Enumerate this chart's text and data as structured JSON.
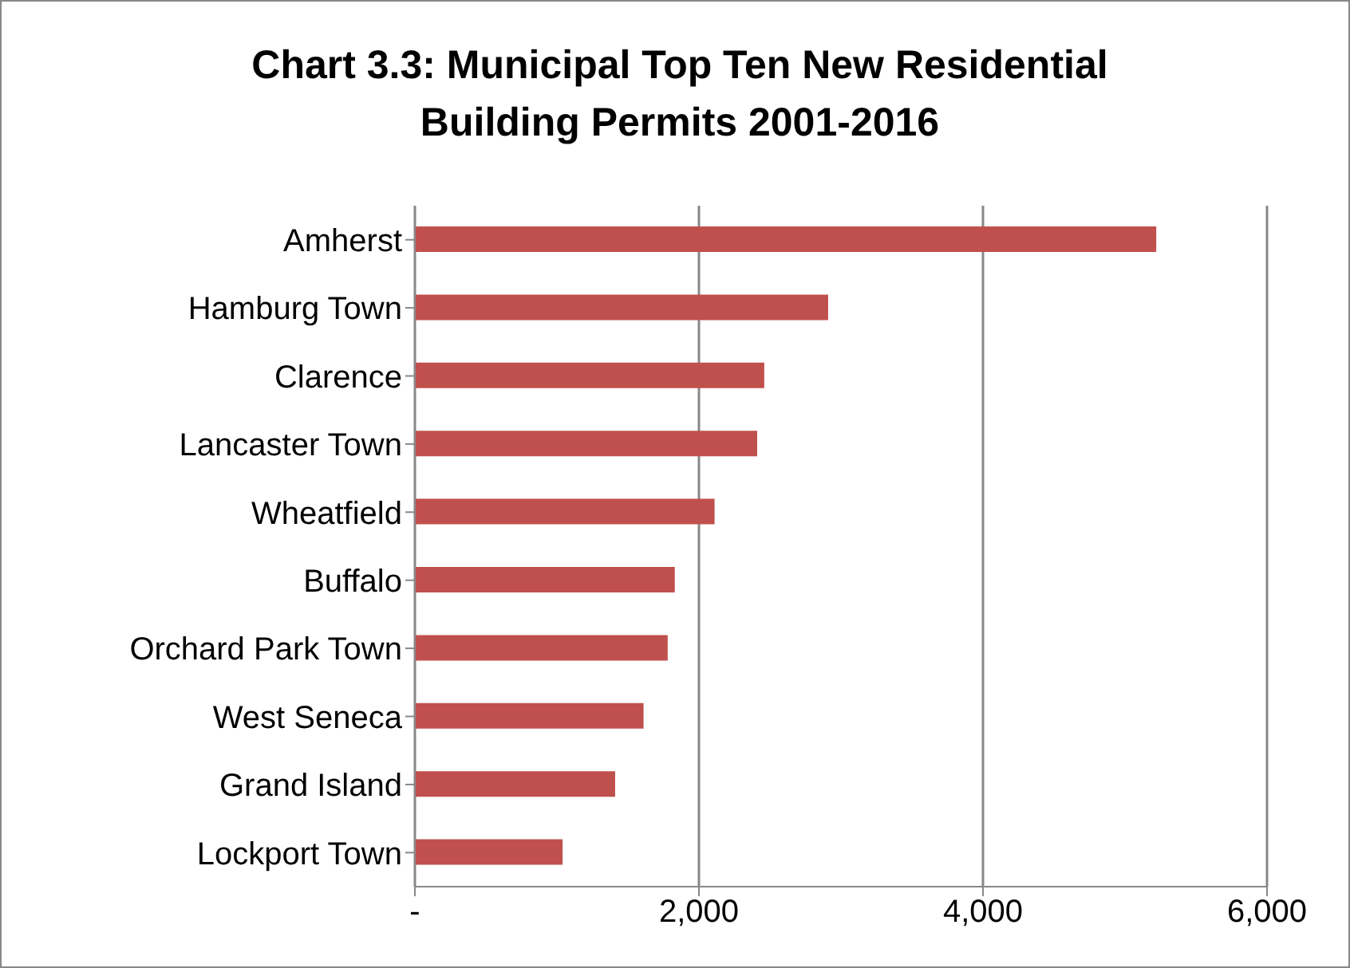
{
  "chart_data": {
    "type": "bar",
    "orientation": "horizontal",
    "title": "Chart 3.3: Municipal Top Ten New Residential Building Permits 2001-2016",
    "categories": [
      "Amherst",
      "Hamburg Town",
      "Clarence",
      "Lancaster Town",
      "Wheatfield",
      "Buffalo",
      "Orchard Park Town",
      "West Seneca",
      "Grand Island",
      "Lockport Town"
    ],
    "values": [
      5220,
      2910,
      2460,
      2410,
      2110,
      1830,
      1780,
      1610,
      1410,
      1040
    ],
    "color": "#c0504d",
    "xlim": [
      0,
      6000
    ],
    "xticks": [
      {
        "value": 0,
        "label": "-"
      },
      {
        "value": 2000,
        "label": "2,000"
      },
      {
        "value": 4000,
        "label": "4,000"
      },
      {
        "value": 6000,
        "label": "6,000"
      }
    ],
    "grid": "x",
    "legend": false
  }
}
